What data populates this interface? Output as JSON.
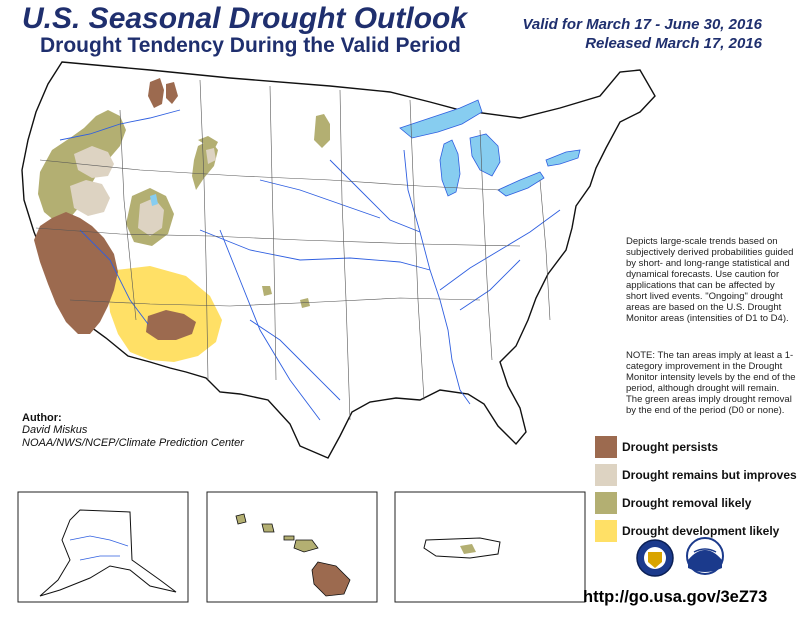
{
  "header": {
    "title": "U.S. Seasonal Drought Outlook",
    "subtitle": "Drought Tendency During the Valid Period",
    "valid": "Valid for March 17 - June 30, 2016",
    "released": "Released March 17, 2016"
  },
  "description": "Depicts large-scale trends based on subjectively derived probabilities guided by short- and long-range statistical and dynamical forecasts. Use caution for applications that can be affected by short lived events. \"Ongoing\" drought areas are based on the U.S. Drought Monitor areas (intensities of D1 to D4).",
  "note": "NOTE: The tan areas imply at least a 1-category improvement in the Drought Monitor intensity levels by the end of the period, although drought will remain. The green areas imply drought removal by the end of the period (D0 or none).",
  "author": {
    "label": "Author:",
    "name": "David Miskus",
    "organization": "NOAA/NWS/NCEP/Climate Prediction Center"
  },
  "legend": [
    {
      "label": "Drought persists",
      "color": "#9c6a4f"
    },
    {
      "label": "Drought remains but improves",
      "color": "#ddd3c2"
    },
    {
      "label": "Drought removal likely",
      "color": "#b3af72"
    },
    {
      "label": "Drought development likely",
      "color": "#ffe066"
    }
  ],
  "colors": {
    "water": "#87cdf0",
    "rivers": "#2f5fe0",
    "borders": "#111111"
  },
  "logos": [
    "doc-seal-icon",
    "noaa-logo-icon"
  ],
  "url": "http://go.usa.gov/3eZ73"
}
